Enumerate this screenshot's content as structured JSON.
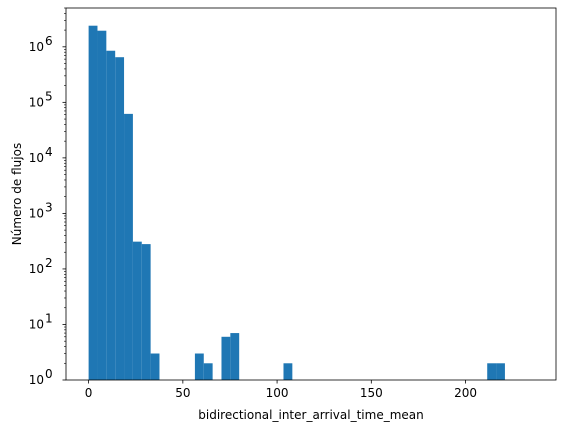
{
  "chart_data": {
    "type": "bar",
    "subtype": "histogram",
    "title": "",
    "xlabel": "bidirectional_inter_arrival_time_mean",
    "ylabel": "Número de flujos",
    "yscale": "log",
    "xlim": [
      -12,
      248
    ],
    "ylim": [
      1,
      5000000
    ],
    "bar_color": "#1f77b4",
    "grid": false,
    "x_ticks": [
      0,
      50,
      100,
      150,
      200
    ],
    "x_tick_labels": [
      "0",
      "50",
      "100",
      "150",
      "200"
    ],
    "y_ticks": [
      1,
      10,
      100,
      1000,
      10000,
      100000,
      1000000
    ],
    "y_tick_labels": [
      "10^0",
      "10^1",
      "10^2",
      "10^3",
      "10^4",
      "10^5",
      "10^6"
    ],
    "bins": [
      {
        "x0": 0,
        "x1": 4.7,
        "count": 2400000
      },
      {
        "x0": 4.7,
        "x1": 9.4,
        "count": 1950000
      },
      {
        "x0": 9.4,
        "x1": 14.1,
        "count": 850000
      },
      {
        "x0": 14.1,
        "x1": 18.8,
        "count": 650000
      },
      {
        "x0": 18.8,
        "x1": 23.5,
        "count": 62000
      },
      {
        "x0": 23.5,
        "x1": 28.2,
        "count": 310
      },
      {
        "x0": 28.2,
        "x1": 32.9,
        "count": 280
      },
      {
        "x0": 32.9,
        "x1": 37.6,
        "count": 3
      },
      {
        "x0": 56.4,
        "x1": 61.1,
        "count": 3
      },
      {
        "x0": 61.1,
        "x1": 65.8,
        "count": 2
      },
      {
        "x0": 70.5,
        "x1": 75.2,
        "count": 6
      },
      {
        "x0": 75.2,
        "x1": 79.9,
        "count": 7
      },
      {
        "x0": 103.4,
        "x1": 108.1,
        "count": 2
      },
      {
        "x0": 211.5,
        "x1": 216.2,
        "count": 2
      },
      {
        "x0": 216.2,
        "x1": 220.9,
        "count": 2
      }
    ]
  }
}
